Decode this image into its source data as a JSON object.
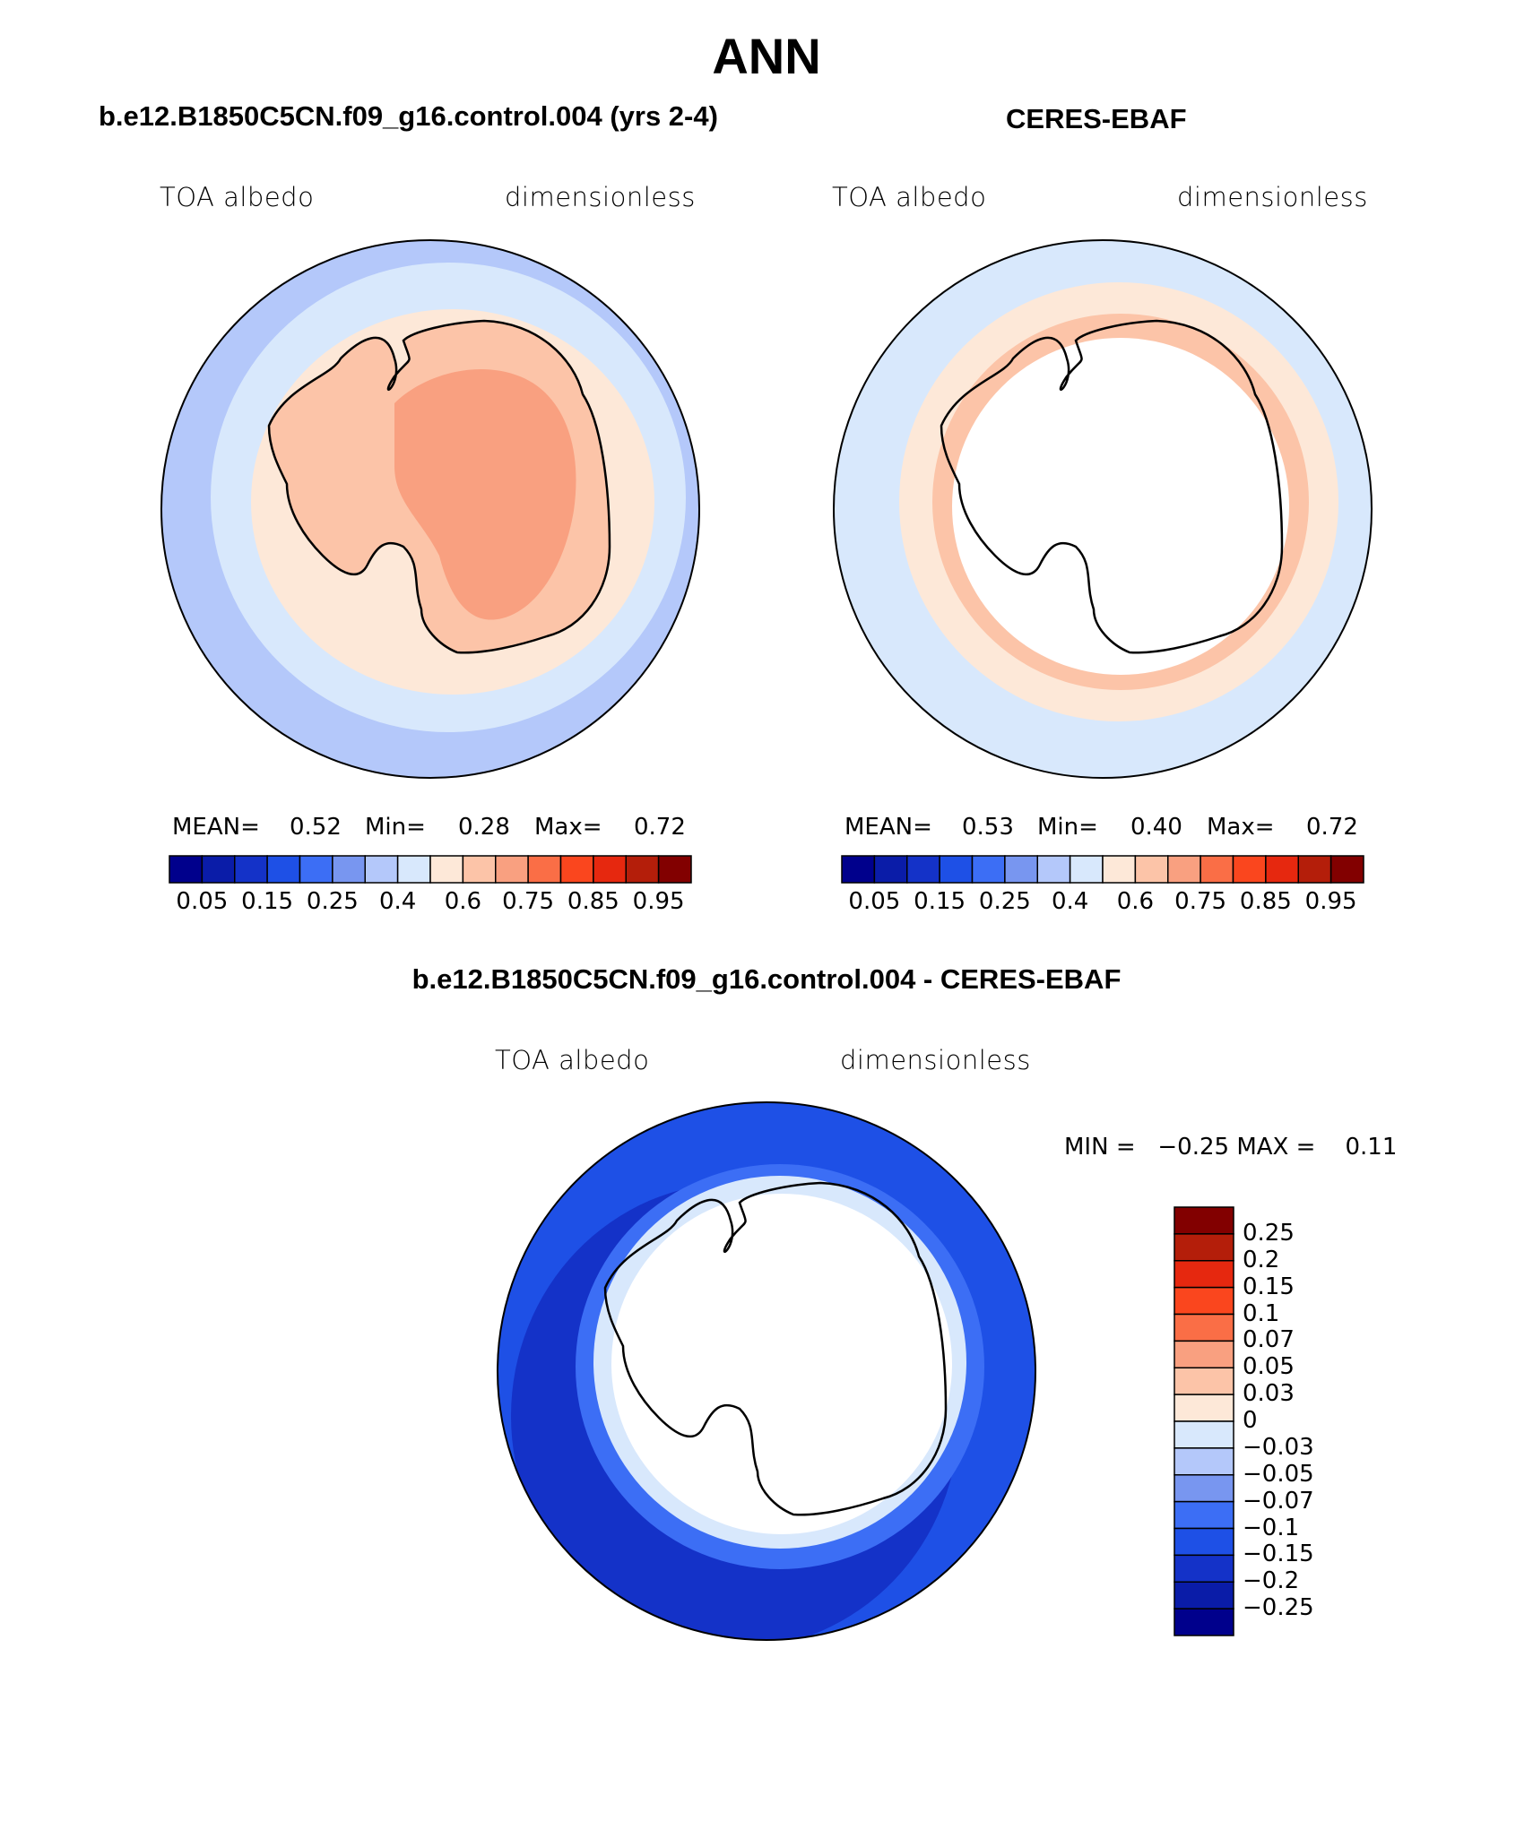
{
  "title": "ANN",
  "panels": {
    "model": {
      "title": "b.e12.B1850C5CN.f09_g16.control.004 (yrs 2-4)",
      "left_label": "TOA albedo",
      "right_label": "dimensionless",
      "mean_label": "MEAN=",
      "mean": "0.52",
      "min_label": "Min=",
      "min": "0.28",
      "max_label": "Max=",
      "max": "0.72"
    },
    "obs": {
      "title": "CERES-EBAF",
      "left_label": "TOA albedo",
      "right_label": "dimensionless",
      "mean_label": "MEAN=",
      "mean": "0.53",
      "min_label": "Min=",
      "min": "0.40",
      "max_label": "Max=",
      "max": "0.72"
    },
    "diff": {
      "title": "b.e12.B1850C5CN.f09_g16.control.004 - CERES-EBAF",
      "left_label": "TOA albedo",
      "right_label": "dimensionless",
      "minmax": "MIN =   −0.25 MAX =    0.11"
    }
  },
  "colorbar_main": {
    "colors": [
      "#00008c",
      "#0a1ca8",
      "#1432c8",
      "#1e50e6",
      "#3c6ef5",
      "#7896f0",
      "#b4c8fa",
      "#d8e8fc",
      "#fde8d8",
      "#fcc4a8",
      "#f9a080",
      "#fa6e46",
      "#fa461e",
      "#e6280f",
      "#b41e0a",
      "#820000"
    ],
    "tick_labels": [
      "0.05",
      "0.15",
      "0.25",
      "0.4",
      "0.6",
      "0.75",
      "0.85",
      "0.95"
    ]
  },
  "colorbar_diff": {
    "colors": [
      "#820000",
      "#b41e0a",
      "#e6280f",
      "#fa461e",
      "#fa6e46",
      "#f9a080",
      "#fcc4a8",
      "#fde8d8",
      "#d8e8fc",
      "#b4c8fa",
      "#7896f0",
      "#3c6ef5",
      "#1e50e6",
      "#1432c8",
      "#0a1ca8",
      "#00008c"
    ],
    "tick_labels": [
      "0.25",
      "0.2",
      "0.15",
      "0.1",
      "0.07",
      "0.05",
      "0.03",
      "0",
      "−0.03",
      "−0.05",
      "−0.07",
      "−0.1",
      "−0.15",
      "−0.2",
      "−0.25"
    ]
  },
  "map_colors": {
    "ocean_far": "#b4c8fa",
    "ocean_mid": "#d8e8fc",
    "ice_edge": "#fde8d8",
    "land": "#fcc4a8",
    "land_high": "#f9a080",
    "blank": "#ffffff",
    "diff_ocean": "#1e50e6",
    "diff_ocean_dark": "#1432c8",
    "diff_ocean_light": "#3c6ef5",
    "coastline": "#000000"
  }
}
